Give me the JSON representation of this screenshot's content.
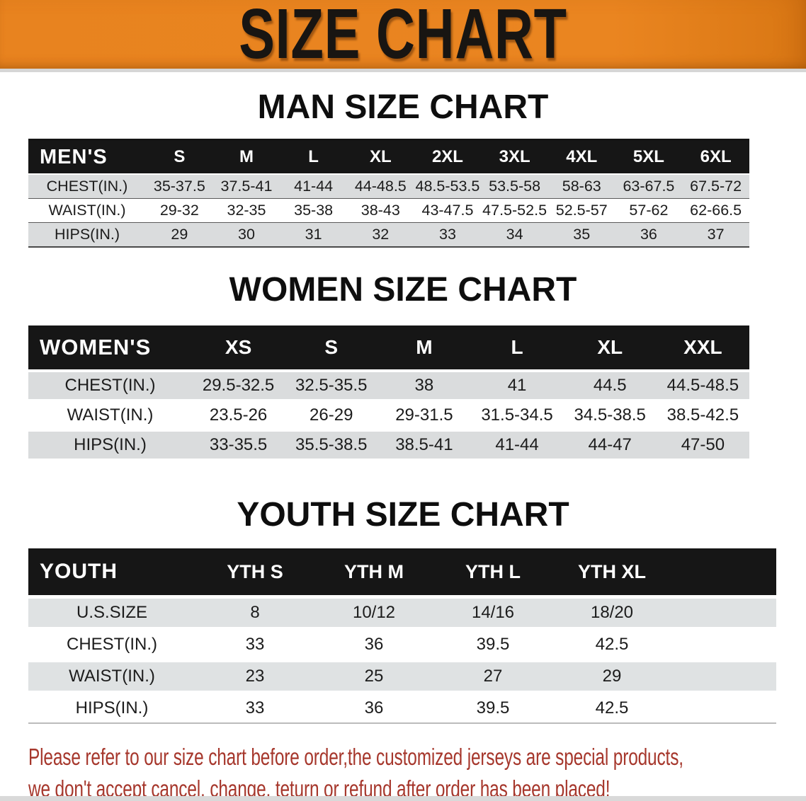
{
  "banner": {
    "title": "SIZE CHART"
  },
  "men": {
    "heading": "MAN SIZE CHART",
    "table": {
      "label": "MEN'S",
      "columns": [
        "S",
        "M",
        "L",
        "XL",
        "2XL",
        "3XL",
        "4XL",
        "5XL",
        "6XL"
      ],
      "rows": [
        {
          "label": "CHEST(IN.)",
          "values": [
            "35-37.5",
            "37.5-41",
            "41-44",
            "44-48.5",
            "48.5-53.5",
            "53.5-58",
            "58-63",
            "63-67.5",
            "67.5-72"
          ]
        },
        {
          "label": "WAIST(IN.)",
          "values": [
            "29-32",
            "32-35",
            "35-38",
            "38-43",
            "43-47.5",
            "47.5-52.5",
            "52.5-57",
            "57-62",
            "62-66.5"
          ]
        },
        {
          "label": "HIPS(IN.)",
          "values": [
            "29",
            "30",
            "31",
            "32",
            "33",
            "34",
            "35",
            "36",
            "37"
          ]
        }
      ]
    }
  },
  "women": {
    "heading": "WOMEN SIZE CHART",
    "table": {
      "label": "WOMEN'S",
      "columns": [
        "XS",
        "S",
        "M",
        "L",
        "XL",
        "XXL"
      ],
      "rows": [
        {
          "label": "CHEST(IN.)",
          "values": [
            "29.5-32.5",
            "32.5-35.5",
            "38",
            "41",
            "44.5",
            "44.5-48.5"
          ]
        },
        {
          "label": "WAIST(IN.)",
          "values": [
            "23.5-26",
            "26-29",
            "29-31.5",
            "31.5-34.5",
            "34.5-38.5",
            "38.5-42.5"
          ]
        },
        {
          "label": "HIPS(IN.)",
          "values": [
            "33-35.5",
            "35.5-38.5",
            "38.5-41",
            "41-44",
            "44-47",
            "47-50"
          ]
        }
      ]
    }
  },
  "youth": {
    "heading": "YOUTH SIZE CHART",
    "table": {
      "label": "YOUTH",
      "columns": [
        "YTH S",
        "YTH M",
        "YTH L",
        "YTH XL"
      ],
      "spacer_cols": 1,
      "rows": [
        {
          "label": "U.S.SIZE",
          "values": [
            "8",
            "10/12",
            "14/16",
            "18/20"
          ]
        },
        {
          "label": "CHEST(IN.)",
          "values": [
            "33",
            "36",
            "39.5",
            "42.5"
          ]
        },
        {
          "label": "WAIST(IN.)",
          "values": [
            "23",
            "25",
            "27",
            "29"
          ]
        },
        {
          "label": "HIPS(IN.)",
          "values": [
            "33",
            "36",
            "39.5",
            "42.5"
          ]
        }
      ]
    }
  },
  "footer": {
    "line1": "Please refer to our size chart before order,the customized jerseys are special products,",
    "line2": "we don't accept cancel, change, teturn or refund after order has been placed!"
  },
  "colors": {
    "banner_orange": "#E8821E",
    "header_black": "#161616",
    "row_stripe": "#DADCDD",
    "disclaimer_red": "#A6372C"
  }
}
